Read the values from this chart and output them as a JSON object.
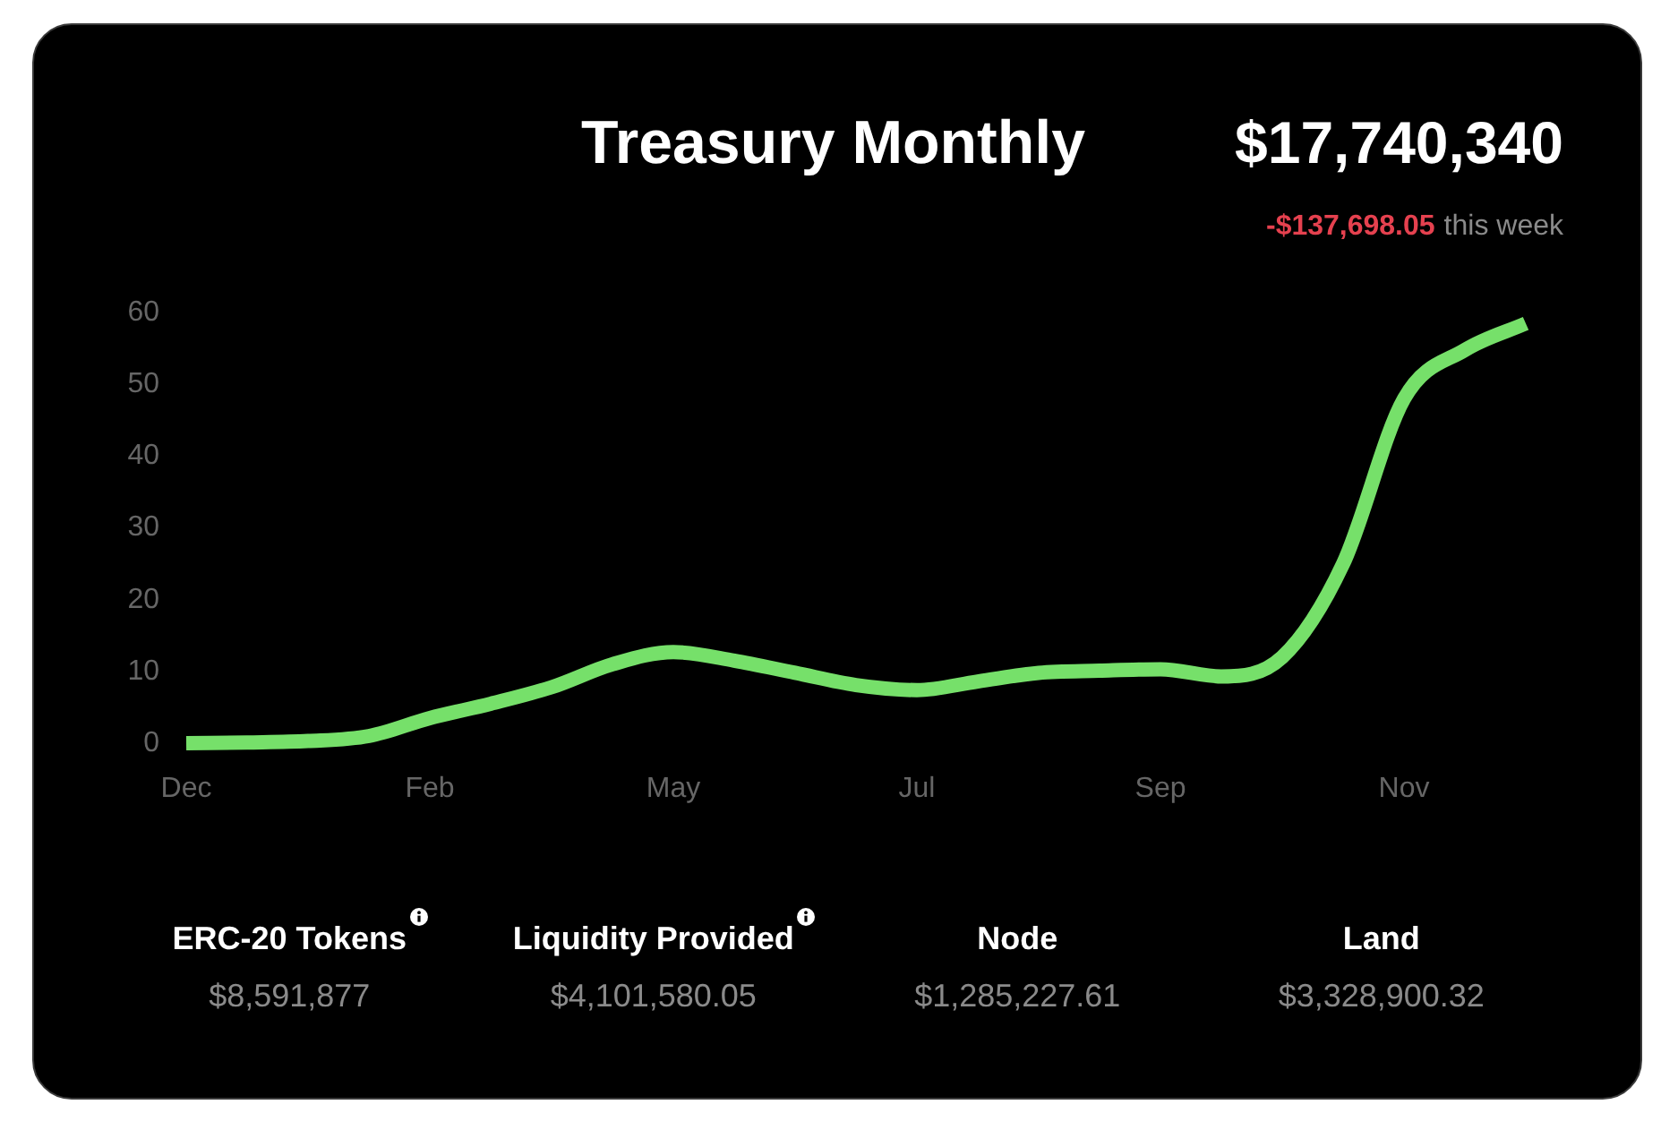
{
  "chart_data": {
    "type": "line",
    "title": "Treasury Monthly",
    "subtitle": "$17,740,340",
    "annotations": [
      "-$137,698.05",
      "this week",
      "ERC-20 Tokens",
      "$8,591,877",
      "Liquidity Provided",
      "$4,101,580.05",
      "Node",
      "$1,285,227.61",
      "Land",
      "$3,328,900.32"
    ],
    "categories": [
      "Dec",
      null,
      null,
      null,
      "Feb",
      null,
      null,
      null,
      "May",
      null,
      null,
      null,
      "Jul",
      null,
      null,
      null,
      "Sep",
      null,
      null,
      null,
      "Nov",
      null,
      null
    ],
    "values": [
      0,
      0.1,
      0.3,
      1,
      3.5,
      5.5,
      7.8,
      11,
      12.7,
      11.5,
      9.8,
      8.1,
      7.4,
      8.6,
      9.8,
      10.1,
      10.3,
      9.3,
      12,
      25,
      48,
      54.8,
      58.5
    ],
    "color": "#76e06a",
    "ylim": [
      0,
      60
    ],
    "yticks": [
      0,
      10,
      20,
      30,
      40,
      50,
      60
    ],
    "grid": false,
    "legend": false,
    "marker": "none",
    "line_style": "solid"
  }
}
